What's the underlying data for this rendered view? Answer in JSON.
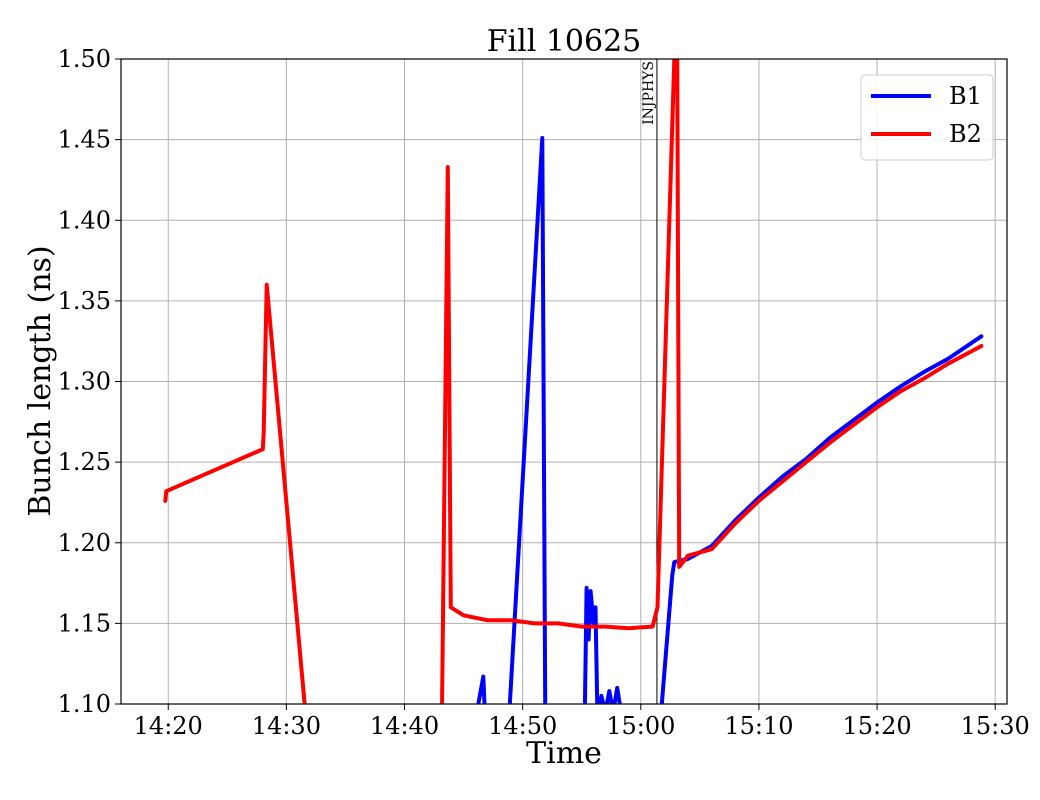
{
  "chart_data": {
    "type": "line",
    "title": "Fill 10625",
    "xlabel": "Time",
    "ylabel": "Bunch length (ns)",
    "xlim": [
      "14:16",
      "15:31"
    ],
    "ylim": [
      1.1,
      1.5
    ],
    "x_ticks": [
      "14:20",
      "14:30",
      "14:40",
      "14:50",
      "15:00",
      "15:10",
      "15:20",
      "15:30"
    ],
    "y_ticks": [
      "1.10",
      "1.15",
      "1.20",
      "1.25",
      "1.30",
      "1.35",
      "1.40",
      "1.45",
      "1.50"
    ],
    "grid": true,
    "legend_position": "top-right",
    "annotations": [
      {
        "text": "INJPHYS",
        "x": "15:01:22",
        "type": "vertical-line"
      }
    ],
    "series": [
      {
        "name": "B1",
        "color": "#0000ff",
        "points": [
          [
            "14:46:00",
            1.09
          ],
          [
            "14:46:40",
            1.117
          ],
          [
            "14:46:50",
            1.09
          ],
          [
            "14:48:50",
            1.09
          ],
          [
            "14:51:40",
            1.451
          ],
          [
            "14:51:55",
            1.09
          ],
          [
            "14:55:15",
            1.09
          ],
          [
            "14:55:25",
            1.172
          ],
          [
            "14:55:35",
            1.14
          ],
          [
            "14:55:45",
            1.17
          ],
          [
            "14:56:00",
            1.15
          ],
          [
            "14:56:10",
            1.16
          ],
          [
            "14:56:20",
            1.09
          ],
          [
            "14:56:40",
            1.105
          ],
          [
            "14:57:00",
            1.095
          ],
          [
            "14:57:20",
            1.108
          ],
          [
            "14:57:40",
            1.095
          ],
          [
            "14:58:00",
            1.11
          ],
          [
            "14:58:20",
            1.095
          ],
          [
            "14:58:40",
            1.09
          ],
          [
            "15:01:40",
            1.09
          ],
          [
            "15:02:40",
            1.18
          ],
          [
            "15:02:50",
            1.188
          ],
          [
            "15:04:00",
            1.19
          ],
          [
            "15:06:00",
            1.198
          ],
          [
            "15:08:00",
            1.214
          ],
          [
            "15:10:00",
            1.228
          ],
          [
            "15:12:00",
            1.241
          ],
          [
            "15:14:00",
            1.252
          ],
          [
            "15:16:00",
            1.265
          ],
          [
            "15:18:00",
            1.276
          ],
          [
            "15:20:00",
            1.287
          ],
          [
            "15:22:00",
            1.297
          ],
          [
            "15:24:00",
            1.306
          ],
          [
            "15:26:00",
            1.314
          ],
          [
            "15:28:50",
            1.328
          ]
        ]
      },
      {
        "name": "B2",
        "color": "#ff0000",
        "points": [
          [
            "14:19:45",
            1.226
          ],
          [
            "14:19:50",
            1.232
          ],
          [
            "14:28:00",
            1.258
          ],
          [
            "14:28:05",
            1.268
          ],
          [
            "14:28:20",
            1.36
          ],
          [
            "14:31:40",
            1.09
          ],
          [
            "14:43:10",
            1.09
          ],
          [
            "14:43:40",
            1.433
          ],
          [
            "14:43:55",
            1.16
          ],
          [
            "14:45:00",
            1.155
          ],
          [
            "14:47:00",
            1.152
          ],
          [
            "14:49:00",
            1.152
          ],
          [
            "14:51:00",
            1.15
          ],
          [
            "14:53:00",
            1.15
          ],
          [
            "14:55:00",
            1.148
          ],
          [
            "14:57:00",
            1.148
          ],
          [
            "14:59:00",
            1.147
          ],
          [
            "15:01:00",
            1.148
          ],
          [
            "15:01:25",
            1.16
          ],
          [
            "15:02:50",
            1.5
          ],
          [
            "15:03:05",
            1.505
          ],
          [
            "15:03:15",
            1.185
          ],
          [
            "15:04:00",
            1.192
          ],
          [
            "15:06:00",
            1.196
          ],
          [
            "15:08:00",
            1.212
          ],
          [
            "15:10:00",
            1.226
          ],
          [
            "15:12:00",
            1.238
          ],
          [
            "15:14:00",
            1.25
          ],
          [
            "15:16:00",
            1.262
          ],
          [
            "15:18:00",
            1.273
          ],
          [
            "15:20:00",
            1.284
          ],
          [
            "15:22:00",
            1.294
          ],
          [
            "15:24:00",
            1.302
          ],
          [
            "15:26:00",
            1.311
          ],
          [
            "15:28:50",
            1.322
          ]
        ]
      }
    ]
  }
}
